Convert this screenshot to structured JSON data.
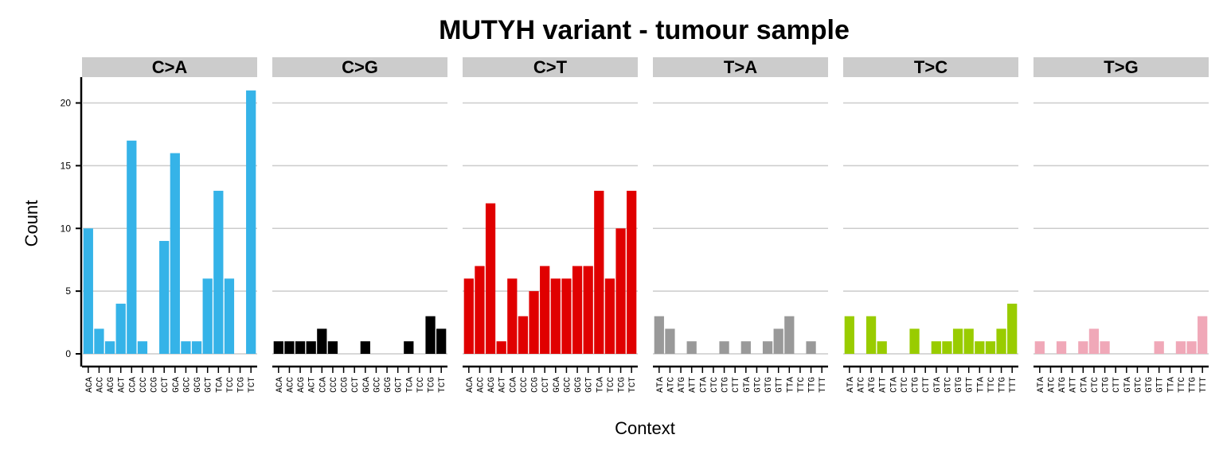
{
  "chart_data": {
    "type": "bar",
    "title": "MUTYH variant - tumour sample",
    "xlabel": "Context",
    "ylabel": "Count",
    "ylim": [
      0,
      22
    ],
    "yticks": [
      0,
      5,
      10,
      15,
      20
    ],
    "grid": "horizontal major",
    "legend": "none",
    "facets": [
      {
        "name": "C>A",
        "color": "#35b3e8",
        "categories": [
          "ACA",
          "ACC",
          "ACG",
          "ACT",
          "CCA",
          "CCC",
          "CCG",
          "CCT",
          "GCA",
          "GCC",
          "GCG",
          "GCT",
          "TCA",
          "TCC",
          "TCG",
          "TCT"
        ],
        "values": [
          10,
          2,
          1,
          4,
          17,
          1,
          0,
          9,
          16,
          1,
          1,
          6,
          13,
          6,
          0,
          21
        ]
      },
      {
        "name": "C>G",
        "color": "#000000",
        "categories": [
          "ACA",
          "ACC",
          "ACG",
          "ACT",
          "CCA",
          "CCC",
          "CCG",
          "CCT",
          "GCA",
          "GCC",
          "GCG",
          "GCT",
          "TCA",
          "TCC",
          "TCG",
          "TCT"
        ],
        "values": [
          1,
          1,
          1,
          1,
          2,
          1,
          0,
          0,
          1,
          0,
          0,
          0,
          1,
          0,
          3,
          2
        ]
      },
      {
        "name": "C>T",
        "color": "#e00000",
        "categories": [
          "ACA",
          "ACC",
          "ACG",
          "ACT",
          "CCA",
          "CCC",
          "CCG",
          "CCT",
          "GCA",
          "GCC",
          "GCG",
          "GCT",
          "TCA",
          "TCC",
          "TCG",
          "TCT"
        ],
        "values": [
          6,
          7,
          12,
          1,
          6,
          3,
          5,
          7,
          6,
          6,
          7,
          7,
          13,
          6,
          10,
          13
        ]
      },
      {
        "name": "T>A",
        "color": "#999999",
        "categories": [
          "ATA",
          "ATC",
          "ATG",
          "ATT",
          "CTA",
          "CTC",
          "CTG",
          "CTT",
          "GTA",
          "GTC",
          "GTG",
          "GTT",
          "TTA",
          "TTC",
          "TTG",
          "TTT"
        ],
        "values": [
          3,
          2,
          0,
          1,
          0,
          0,
          1,
          0,
          1,
          0,
          1,
          2,
          3,
          0,
          1,
          0
        ]
      },
      {
        "name": "T>C",
        "color": "#99cc00",
        "categories": [
          "ATA",
          "ATC",
          "ATG",
          "ATT",
          "CTA",
          "CTC",
          "CTG",
          "CTT",
          "GTA",
          "GTC",
          "GTG",
          "GTT",
          "TTA",
          "TTC",
          "TTG",
          "TTT"
        ],
        "values": [
          3,
          0,
          3,
          1,
          0,
          0,
          2,
          0,
          1,
          1,
          2,
          2,
          1,
          1,
          2,
          4
        ]
      },
      {
        "name": "T>G",
        "color": "#f0a8b8",
        "categories": [
          "ATA",
          "ATC",
          "ATG",
          "ATT",
          "CTA",
          "CTC",
          "CTG",
          "CTT",
          "GTA",
          "GTC",
          "GTG",
          "GTT",
          "TTA",
          "TTC",
          "TTG",
          "TTT"
        ],
        "values": [
          1,
          0,
          1,
          0,
          1,
          2,
          1,
          0,
          0,
          0,
          0,
          1,
          0,
          1,
          1,
          3
        ]
      }
    ]
  },
  "colors": {
    "strip_background": "#cccccc",
    "gridline": "#cccccc",
    "axis": "#000000"
  }
}
